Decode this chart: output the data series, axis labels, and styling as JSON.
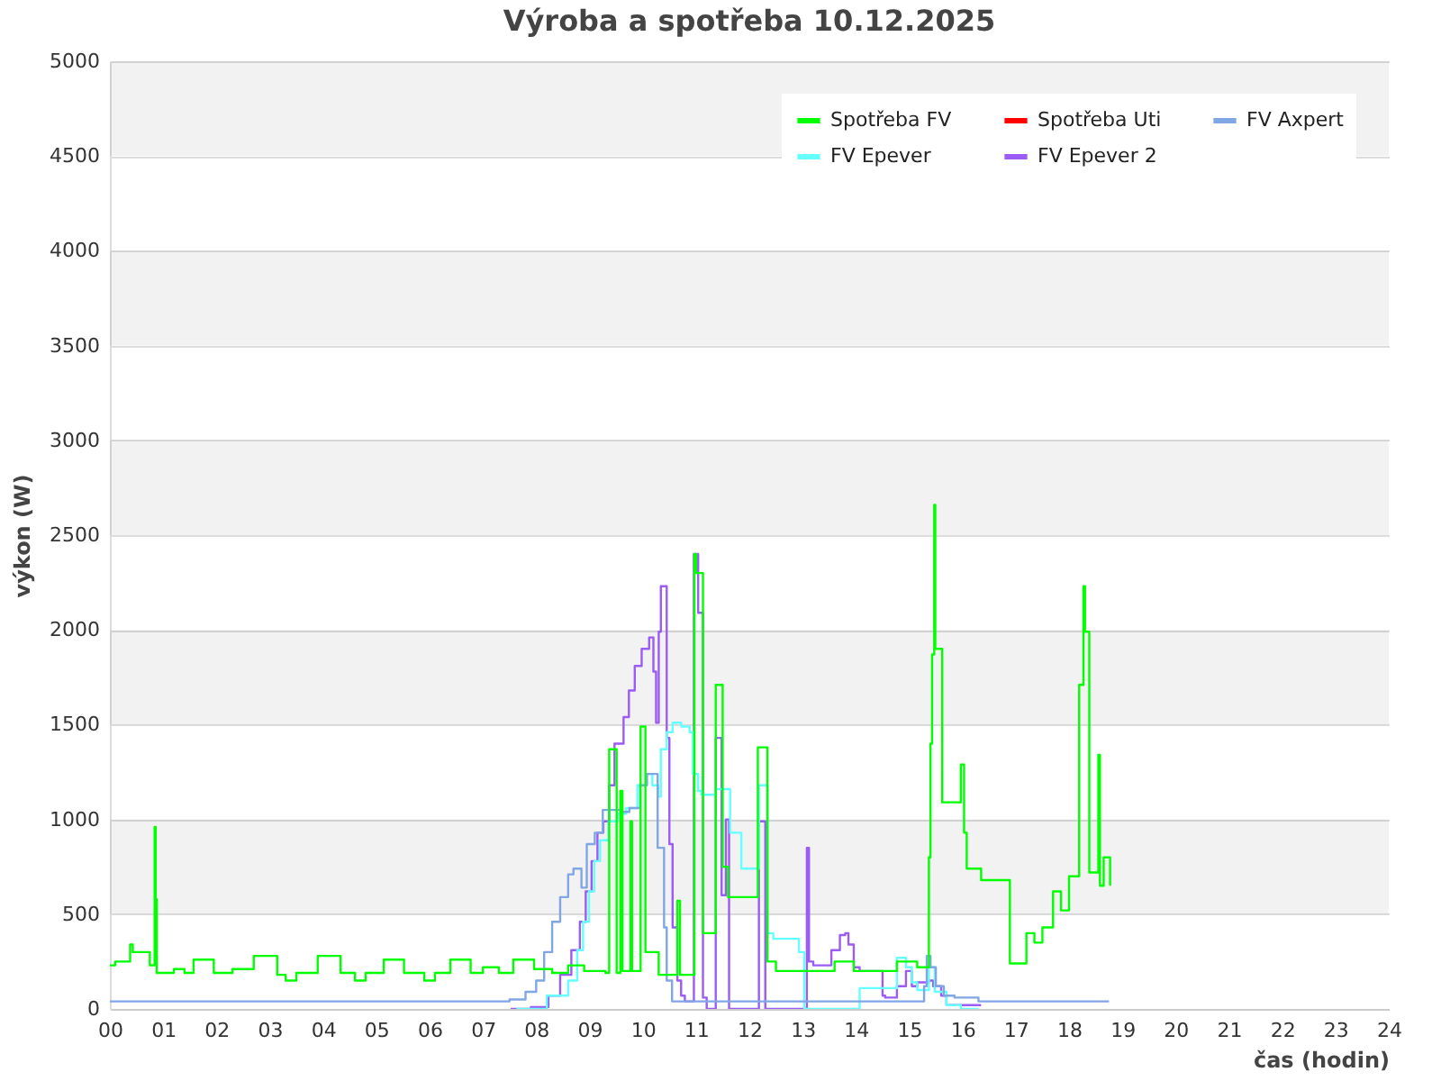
{
  "chart_data": {
    "type": "step",
    "title": "Výroba a spotřeba 10.12.2025",
    "xlabel": "čas (hodin)",
    "ylabel": "výkon (W)",
    "xlim": [
      0,
      24
    ],
    "xticks": [
      {
        "value": 0,
        "label": "00"
      },
      {
        "value": 1,
        "label": "01"
      },
      {
        "value": 2,
        "label": "02"
      },
      {
        "value": 3,
        "label": "03"
      },
      {
        "value": 4,
        "label": "04"
      },
      {
        "value": 5,
        "label": "05"
      },
      {
        "value": 6,
        "label": "06"
      },
      {
        "value": 7,
        "label": "07"
      },
      {
        "value": 8,
        "label": "08"
      },
      {
        "value": 9,
        "label": "09"
      },
      10,
      11,
      12,
      13,
      14,
      15,
      16,
      17,
      18,
      19,
      20,
      21,
      22,
      23,
      24
    ],
    "ylim": [
      0,
      5000
    ],
    "yticks": [
      0,
      500,
      1000,
      1500,
      2000,
      2500,
      3000,
      3500,
      4000,
      4500,
      5000
    ],
    "grid": "y",
    "legend": "top right",
    "series": [
      {
        "name": "Spotřeba FV",
        "color": "#00ff00",
        "x": [
          0,
          0.1,
          0.38,
          0.43,
          0.75,
          0.84,
          0.86,
          0.88,
          1.2,
          1.4,
          1.57,
          1.95,
          2.3,
          2.7,
          3.14,
          3.3,
          3.5,
          3.9,
          4.33,
          4.6,
          4.8,
          5.14,
          5.52,
          5.9,
          6.1,
          6.39,
          6.77,
          7.0,
          7.3,
          7.57,
          7.96,
          8.3,
          8.6,
          8.9,
          9.3,
          9.37,
          9.51,
          9.58,
          9.62,
          9.77,
          9.8,
          9.96,
          10.05,
          10.3,
          10.65,
          10.7,
          10.97,
          11.0,
          11.13,
          11.37,
          11.5,
          11.6,
          12.16,
          12.34,
          12.5,
          13.6,
          13.96,
          14.77,
          15.15,
          15.37,
          15.4,
          15.43,
          15.47,
          15.49,
          15.62,
          15.97,
          16.03,
          16.08,
          16.35,
          16.89,
          17.2,
          17.35,
          17.5,
          17.7,
          17.85,
          18.0,
          18.19,
          18.27,
          18.3,
          18.38,
          18.55,
          18.58,
          18.65,
          18.77
        ],
        "values": [
          230,
          250,
          340,
          300,
          230,
          960,
          580,
          190,
          210,
          190,
          260,
          190,
          210,
          280,
          180,
          150,
          190,
          280,
          190,
          150,
          190,
          260,
          190,
          150,
          190,
          260,
          190,
          220,
          190,
          260,
          210,
          190,
          230,
          200,
          190,
          1370,
          190,
          1150,
          200,
          990,
          200,
          1490,
          300,
          180,
          570,
          180,
          2400,
          2300,
          400,
          1710,
          750,
          590,
          1380,
          250,
          200,
          250,
          200,
          250,
          220,
          800,
          1400,
          1870,
          2660,
          1900,
          1090,
          1290,
          930,
          740,
          680,
          240,
          400,
          350,
          430,
          620,
          520,
          700,
          1710,
          2230,
          1990,
          720,
          1340,
          650,
          800,
          650
        ]
      },
      {
        "name": "Spotřeba Uti",
        "color": "#ff0000"
      },
      {
        "name": "FV Axpert",
        "color": "#80a6e6",
        "x": [
          0,
          7.39,
          7.5,
          7.8,
          8.0,
          8.15,
          8.3,
          8.45,
          8.6,
          8.7,
          8.85,
          8.95,
          9.1,
          9.25,
          9.6,
          9.75,
          9.95,
          10.08,
          10.28,
          10.4,
          10.45,
          10.55,
          15.28,
          15.33,
          15.4,
          15.5,
          15.65,
          15.85,
          16.3,
          18.75
        ],
        "values": [
          40,
          40,
          50,
          90,
          150,
          300,
          460,
          590,
          710,
          740,
          640,
          870,
          930,
          1050,
          1040,
          1060,
          1180,
          1240,
          850,
          430,
          150,
          40,
          120,
          280,
          220,
          120,
          70,
          60,
          40,
          40
        ]
      },
      {
        "name": "FV Epever",
        "color": "#66ffff",
        "x": [
          7.63,
          8.2,
          8.6,
          8.77,
          8.88,
          8.99,
          9.09,
          9.2,
          9.36,
          9.53,
          9.69,
          9.9,
          10.07,
          10.18,
          10.29,
          10.34,
          10.45,
          10.56,
          10.72,
          10.88,
          10.94,
          11.04,
          11.1,
          11.37,
          11.64,
          11.85,
          12.18,
          12.34,
          12.45,
          12.93,
          13.03,
          14.07,
          14.77,
          14.94,
          15.05,
          15.15,
          15.37,
          15.48,
          15.7,
          15.97,
          16.3
        ],
        "values": [
          0,
          70,
          150,
          310,
          460,
          620,
          780,
          890,
          990,
          1030,
          1060,
          1180,
          1240,
          1180,
          1120,
          1370,
          1460,
          1510,
          1490,
          1460,
          1240,
          1150,
          1130,
          1160,
          930,
          740,
          1180,
          400,
          370,
          300,
          0,
          110,
          270,
          220,
          140,
          100,
          220,
          90,
          20,
          0,
          0
        ]
      },
      {
        "name": "FV Epever 2",
        "color": "#9b5cf6",
        "x": [
          7.52,
          7.9,
          8.23,
          8.45,
          8.66,
          8.82,
          8.93,
          9.04,
          9.15,
          9.26,
          9.37,
          9.47,
          9.64,
          9.74,
          9.85,
          9.98,
          10.12,
          10.2,
          10.25,
          10.3,
          10.34,
          10.45,
          10.5,
          10.56,
          10.65,
          10.72,
          10.79,
          10.96,
          11.04,
          11.13,
          11.2,
          11.37,
          11.48,
          11.56,
          11.62,
          12.18,
          12.3,
          13.08,
          13.12,
          13.2,
          13.54,
          13.7,
          13.8,
          13.86,
          13.96,
          14.07,
          14.5,
          14.55,
          14.77,
          14.94,
          15.05,
          15.15,
          15.37,
          15.45,
          15.6,
          15.7,
          16.35
        ],
        "values": [
          0,
          10,
          70,
          180,
          310,
          460,
          620,
          780,
          930,
          990,
          1180,
          1400,
          1540,
          1680,
          1810,
          1900,
          1960,
          1780,
          1510,
          1990,
          2230,
          1430,
          870,
          430,
          150,
          70,
          40,
          2400,
          2090,
          60,
          0,
          1430,
          600,
          1000,
          0,
          990,
          0,
          850,
          250,
          230,
          310,
          390,
          400,
          340,
          220,
          200,
          70,
          60,
          120,
          200,
          120,
          140,
          150,
          120,
          70,
          20,
          20
        ]
      }
    ]
  }
}
